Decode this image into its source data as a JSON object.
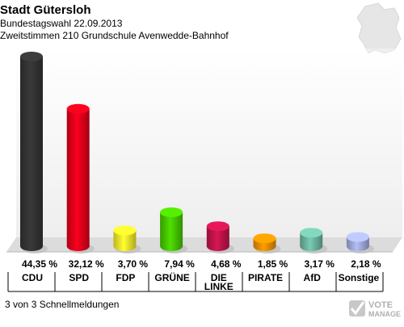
{
  "header": {
    "title": "Stadt Gütersloh",
    "subtitle": "Bundestagswahl 22.09.2013",
    "subtitle2": "Zweitstimmen 210 Grundschule Avenwedde-Bahnhof"
  },
  "footer": {
    "status": "3 von 3 Schnellmeldungen",
    "brand_line1": "VOTE",
    "brand_line2": "MANAGER"
  },
  "chart_data": {
    "type": "bar",
    "title": "Stadt Gütersloh",
    "categories": [
      "CDU",
      "SPD",
      "FDP",
      "GRÜNE",
      "DIE LINKE",
      "PIRATE",
      "AfD",
      "Sonstige"
    ],
    "category_lines": [
      [
        "CDU"
      ],
      [
        "SPD"
      ],
      [
        "FDP"
      ],
      [
        "GRÜNE"
      ],
      [
        "DIE",
        "LINKE"
      ],
      [
        "PIRATE"
      ],
      [
        "AfD"
      ],
      [
        "Sonstige"
      ]
    ],
    "values": [
      44.35,
      32.12,
      3.7,
      7.94,
      4.68,
      1.85,
      3.17,
      2.18
    ],
    "value_labels": [
      "44,35 %",
      "32,12 %",
      "3,70 %",
      "7,94 %",
      "4,68 %",
      "1,85 %",
      "3,17 %",
      "2,18 %"
    ],
    "colors": [
      "#333333",
      "#e2001a",
      "#f5e82a",
      "#46c800",
      "#c0144a",
      "#f08c00",
      "#6db5a0",
      "#a0aadc"
    ],
    "ylim": [
      0,
      44.35
    ],
    "grid": false,
    "legend": "none"
  }
}
